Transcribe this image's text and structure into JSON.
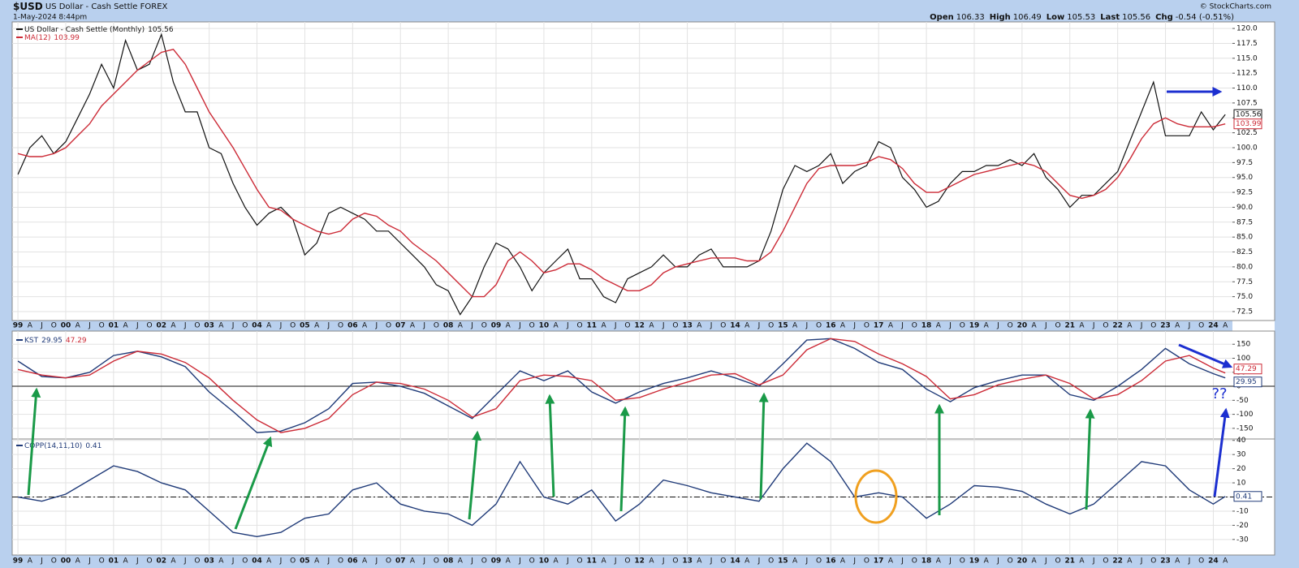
{
  "header": {
    "symbol": "$USD",
    "name": "US Dollar - Cash Settle",
    "exchange": "FOREX",
    "date": "1-May-2024 8:44pm",
    "quote": [
      {
        "label": "Open",
        "value": "106.33"
      },
      {
        "label": "High",
        "value": "106.49"
      },
      {
        "label": "Low",
        "value": "105.53"
      },
      {
        "label": "Last",
        "value": "105.56"
      },
      {
        "label": "Chg",
        "value": "-0.54 (-0.51%)"
      }
    ],
    "credit": "© StockCharts.com"
  },
  "chart_data": [
    {
      "type": "line",
      "grid": true,
      "xlim": [
        1998.88,
        2024.4
      ],
      "ylim": [
        71,
        121.1
      ],
      "yticks": [
        72.5,
        {
          "value": 75,
          "label": "75.0"
        },
        77.5,
        {
          "value": 80,
          "label": "80.0"
        },
        82.5,
        {
          "value": 85,
          "label": "85.0"
        },
        87.5,
        {
          "value": 90,
          "label": "90.0"
        },
        92.5,
        {
          "value": 95,
          "label": "95.0"
        },
        97.5,
        {
          "value": 100,
          "label": "100.0"
        },
        102.5,
        {
          "value": 105,
          "label": "105.0"
        },
        107.5,
        {
          "value": 110,
          "label": "110.0"
        },
        112.5,
        {
          "value": 115,
          "label": "115.0"
        },
        117.5,
        {
          "value": 120,
          "label": "120.0"
        }
      ],
      "xticks": [
        {
          "value": 1999,
          "label": "99"
        },
        {
          "value": 2000,
          "label": "00"
        },
        {
          "value": 2001,
          "label": "01"
        },
        {
          "value": 2002,
          "label": "02"
        },
        {
          "value": 2003,
          "label": "03"
        },
        {
          "value": 2004,
          "label": "04"
        },
        {
          "value": 2005,
          "label": "05"
        },
        {
          "value": 2006,
          "label": "06"
        },
        {
          "value": 2007,
          "label": "07"
        },
        {
          "value": 2008,
          "label": "08"
        },
        {
          "value": 2009,
          "label": "09"
        },
        {
          "value": 2010,
          "label": "10"
        },
        {
          "value": 2011,
          "label": "11"
        },
        {
          "value": 2012,
          "label": "12"
        },
        {
          "value": 2013,
          "label": "13"
        },
        {
          "value": 2014,
          "label": "14"
        },
        {
          "value": 2015,
          "label": "15"
        },
        {
          "value": 2016,
          "label": "16"
        },
        {
          "value": 2017,
          "label": "17"
        },
        {
          "value": 2018,
          "label": "18"
        },
        {
          "value": 2019,
          "label": "19"
        },
        {
          "value": 2020,
          "label": "20"
        },
        {
          "value": 2021,
          "label": "21"
        },
        {
          "value": 2022,
          "label": "22"
        },
        {
          "value": 2023,
          "label": "23"
        },
        {
          "value": 2024,
          "label": "24"
        }
      ],
      "minor_xtick_labels": [
        "A",
        "J",
        "O"
      ],
      "x": [
        1999,
        1999.25,
        1999.5,
        1999.75,
        2000,
        2000.25,
        2000.5,
        2000.75,
        2001,
        2001.25,
        2001.5,
        2001.75,
        2002,
        2002.25,
        2002.5,
        2002.75,
        2003,
        2003.25,
        2003.5,
        2003.75,
        2004,
        2004.25,
        2004.5,
        2004.75,
        2005,
        2005.25,
        2005.5,
        2005.75,
        2006,
        2006.25,
        2006.5,
        2006.75,
        2007,
        2007.25,
        2007.5,
        2007.75,
        2008,
        2008.25,
        2008.5,
        2008.75,
        2009,
        2009.25,
        2009.5,
        2009.75,
        2010,
        2010.25,
        2010.5,
        2010.75,
        2011,
        2011.25,
        2011.5,
        2011.75,
        2012,
        2012.25,
        2012.5,
        2012.75,
        2013,
        2013.25,
        2013.5,
        2013.75,
        2014,
        2014.25,
        2014.5,
        2014.75,
        2015,
        2015.25,
        2015.5,
        2015.75,
        2016,
        2016.25,
        2016.5,
        2016.75,
        2017,
        2017.25,
        2017.5,
        2017.75,
        2018,
        2018.25,
        2018.5,
        2018.75,
        2019,
        2019.25,
        2019.5,
        2019.75,
        2020,
        2020.25,
        2020.5,
        2020.75,
        2021,
        2021.25,
        2021.5,
        2021.75,
        2022,
        2022.25,
        2022.5,
        2022.75,
        2023,
        2023.25,
        2023.5,
        2023.75,
        2024,
        2024.25
      ],
      "series": [
        {
          "name": "US Dollar - Cash Settle (Monthly)",
          "color": "#111111",
          "values": [
            95.5,
            100,
            102,
            99,
            101,
            105,
            109,
            114,
            110,
            118,
            113,
            114,
            119,
            111,
            106,
            106,
            100,
            99,
            94,
            90,
            87,
            89,
            90,
            88,
            82,
            84,
            89,
            90,
            89,
            88,
            86,
            86,
            84,
            82,
            80,
            77,
            76,
            72,
            75,
            80,
            84,
            83,
            80,
            76,
            79,
            81,
            83,
            78,
            78,
            75,
            74,
            78,
            79,
            80,
            82,
            80,
            80,
            82,
            83,
            80,
            80,
            80,
            81,
            86,
            93,
            97,
            96,
            97,
            99,
            94,
            96,
            97,
            101,
            100,
            95,
            93,
            90,
            91,
            94,
            96,
            96,
            97,
            97,
            98,
            97,
            99,
            95,
            93,
            90,
            92,
            92,
            94,
            96,
            101,
            106,
            111,
            102,
            102,
            102,
            106,
            103,
            105.56
          ]
        },
        {
          "name": "MA(12)",
          "color": "#cc2a36",
          "values": [
            99,
            98.5,
            98.5,
            99,
            100,
            102,
            104,
            107,
            109,
            111,
            113,
            114.5,
            116,
            116.5,
            114,
            110,
            106,
            103,
            100,
            96.5,
            93,
            90,
            89.5,
            88,
            87,
            86,
            85.5,
            86,
            88,
            89,
            88.5,
            87,
            86,
            84,
            82.5,
            81,
            79,
            77,
            75,
            75,
            77,
            81,
            82.5,
            81,
            79,
            79.5,
            80.5,
            80.5,
            79.5,
            78,
            77,
            76,
            76,
            77,
            79,
            80,
            80.5,
            81,
            81.5,
            81.5,
            81.5,
            81,
            81,
            82.5,
            86,
            90,
            94,
            96.5,
            97,
            97,
            97,
            97.5,
            98.5,
            98,
            96.5,
            94,
            92.5,
            92.5,
            93.5,
            94.5,
            95.5,
            96,
            96.5,
            97,
            97.5,
            97,
            96,
            94,
            92,
            91.5,
            92,
            93,
            95,
            98,
            101.5,
            104,
            105,
            104,
            103.5,
            103.5,
            103.5,
            103.99
          ]
        }
      ]
    },
    {
      "type": "line",
      "grid": true,
      "xlim": [
        1998.88,
        2024.4
      ],
      "ylim": [
        -188,
        197
      ],
      "yticks": [
        -150,
        -100,
        -50,
        0,
        50,
        100,
        150
      ],
      "hline": {
        "value": 0,
        "style": "solid"
      },
      "x": [
        1999,
        1999.5,
        2000,
        2000.5,
        2001,
        2001.5,
        2002,
        2002.5,
        2003,
        2003.5,
        2004,
        2004.5,
        2005,
        2005.5,
        2006,
        2006.5,
        2007,
        2007.5,
        2008,
        2008.5,
        2009,
        2009.5,
        2010,
        2010.5,
        2011,
        2011.5,
        2012,
        2012.5,
        2013,
        2013.5,
        2014,
        2014.5,
        2015,
        2015.5,
        2016,
        2016.5,
        2017,
        2017.5,
        2018,
        2018.5,
        2019,
        2019.5,
        2020,
        2020.5,
        2021,
        2021.5,
        2022,
        2022.5,
        2023,
        2023.5,
        2024,
        2024.25
      ],
      "series": [
        {
          "name": "KST",
          "color": "#1f3a78",
          "values": [
            90,
            35,
            30,
            50,
            110,
            125,
            105,
            70,
            -20,
            -90,
            -165,
            -160,
            -130,
            -80,
            10,
            15,
            0,
            -25,
            -70,
            -115,
            -30,
            55,
            20,
            55,
            -20,
            -60,
            -20,
            10,
            30,
            55,
            30,
            0,
            80,
            165,
            170,
            135,
            85,
            60,
            -10,
            -55,
            -5,
            20,
            40,
            40,
            -30,
            -50,
            0,
            60,
            135,
            80,
            45,
            29.95
          ]
        },
        {
          "color": "#cc2a36",
          "values": [
            60,
            40,
            30,
            40,
            90,
            125,
            115,
            85,
            30,
            -50,
            -120,
            -165,
            -150,
            -115,
            -30,
            15,
            10,
            -10,
            -50,
            -110,
            -80,
            20,
            40,
            35,
            20,
            -50,
            -40,
            -10,
            15,
            40,
            45,
            5,
            40,
            130,
            170,
            160,
            115,
            80,
            35,
            -45,
            -30,
            5,
            25,
            40,
            10,
            -45,
            -30,
            20,
            90,
            110,
            65,
            47.29
          ]
        }
      ],
      "annotations": [
        "??"
      ]
    },
    {
      "type": "line",
      "grid": true,
      "xlim": [
        1998.88,
        2024.4
      ],
      "ylim": [
        -41,
        41
      ],
      "yticks": [
        -30,
        -20,
        -10,
        0,
        10,
        20,
        30,
        40
      ],
      "hline": {
        "value": 0,
        "style": "dashdot"
      },
      "x": [
        1999,
        1999.5,
        2000,
        2000.5,
        2001,
        2001.5,
        2002,
        2002.5,
        2003,
        2003.5,
        2004,
        2004.5,
        2005,
        2005.5,
        2006,
        2006.5,
        2007,
        2007.5,
        2008,
        2008.5,
        2009,
        2009.5,
        2010,
        2010.5,
        2011,
        2011.5,
        2012,
        2012.5,
        2013,
        2013.5,
        2014,
        2014.5,
        2015,
        2015.5,
        2016,
        2016.5,
        2017,
        2017.5,
        2018,
        2018.5,
        2019,
        2019.5,
        2020,
        2020.5,
        2021,
        2021.5,
        2022,
        2022.5,
        2023,
        2023.5,
        2024,
        2024.25
      ],
      "series": [
        {
          "name": "COPP(14,11,10)",
          "color": "#1f3a78",
          "values": [
            0,
            -3,
            2,
            12,
            22,
            18,
            10,
            5,
            -10,
            -25,
            -28,
            -25,
            -15,
            -12,
            5,
            10,
            -5,
            -10,
            -12,
            -20,
            -5,
            25,
            0,
            -5,
            5,
            -17,
            -5,
            12,
            8,
            3,
            0,
            -3,
            20,
            38,
            25,
            0,
            3,
            0,
            -15,
            -5,
            8,
            7,
            4,
            -5,
            -12,
            -5,
            10,
            25,
            22,
            5,
            -5,
            0.41
          ]
        }
      ]
    }
  ]
}
